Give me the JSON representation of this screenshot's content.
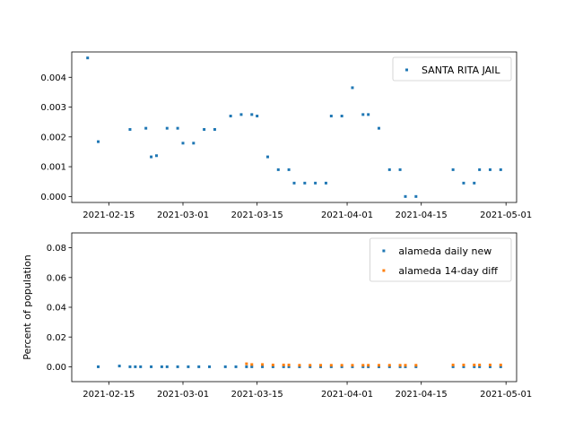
{
  "chart_data": [
    {
      "type": "scatter",
      "title": "",
      "xlabel": "",
      "ylabel": "",
      "xlim": [
        "2021-02-08",
        "2021-05-03"
      ],
      "ylim": [
        -0.0002,
        0.00485
      ],
      "xticks": [
        "2021-02-15",
        "2021-03-01",
        "2021-03-15",
        "2021-04-01",
        "2021-04-15",
        "2021-05-01"
      ],
      "yticks": [
        "0.000",
        "0.001",
        "0.002",
        "0.003",
        "0.004"
      ],
      "legend_position": "top-right",
      "series": [
        {
          "name": "SANTA RITA JAIL",
          "color": "#1f77b4",
          "points": [
            [
              "2021-02-11",
              0.00465
            ],
            [
              "2021-02-13",
              0.00184
            ],
            [
              "2021-02-19",
              0.00225
            ],
            [
              "2021-02-22",
              0.00229
            ],
            [
              "2021-02-23",
              0.00133
            ],
            [
              "2021-02-24",
              0.00137
            ],
            [
              "2021-02-26",
              0.00229
            ],
            [
              "2021-02-28",
              0.00229
            ],
            [
              "2021-03-01",
              0.00179
            ],
            [
              "2021-03-03",
              0.00179
            ],
            [
              "2021-03-05",
              0.00225
            ],
            [
              "2021-03-07",
              0.00225
            ],
            [
              "2021-03-10",
              0.0027
            ],
            [
              "2021-03-12",
              0.00275
            ],
            [
              "2021-03-14",
              0.00275
            ],
            [
              "2021-03-15",
              0.0027
            ],
            [
              "2021-03-17",
              0.00133
            ],
            [
              "2021-03-19",
              0.0009
            ],
            [
              "2021-03-21",
              0.0009
            ],
            [
              "2021-03-22",
              0.00045
            ],
            [
              "2021-03-24",
              0.00045
            ],
            [
              "2021-03-26",
              0.00045
            ],
            [
              "2021-03-28",
              0.00045
            ],
            [
              "2021-03-29",
              0.0027
            ],
            [
              "2021-03-31",
              0.0027
            ],
            [
              "2021-04-02",
              0.00365
            ],
            [
              "2021-04-04",
              0.00275
            ],
            [
              "2021-04-05",
              0.00275
            ],
            [
              "2021-04-07",
              0.00229
            ],
            [
              "2021-04-09",
              0.0009
            ],
            [
              "2021-04-11",
              0.0009
            ],
            [
              "2021-04-12",
              0.0
            ],
            [
              "2021-04-14",
              0.0
            ],
            [
              "2021-04-21",
              0.0009
            ],
            [
              "2021-04-23",
              0.00045
            ],
            [
              "2021-04-25",
              0.00045
            ],
            [
              "2021-04-26",
              0.0009
            ],
            [
              "2021-04-28",
              0.0009
            ],
            [
              "2021-04-30",
              0.0009
            ]
          ]
        }
      ]
    },
    {
      "type": "scatter",
      "title": "",
      "xlabel": "",
      "ylabel": "Percent of population",
      "xlim": [
        "2021-02-08",
        "2021-05-03"
      ],
      "ylim": [
        -0.01,
        0.09
      ],
      "xticks": [
        "2021-02-15",
        "2021-03-01",
        "2021-03-15",
        "2021-04-01",
        "2021-04-15",
        "2021-05-01"
      ],
      "yticks": [
        "0.00",
        "0.02",
        "0.04",
        "0.06",
        "0.08"
      ],
      "legend_position": "top-right",
      "series": [
        {
          "name": "alameda daily new",
          "color": "#1f77b4",
          "points": [
            [
              "2021-02-13",
              0.0
            ],
            [
              "2021-02-17",
              0.0005
            ],
            [
              "2021-02-19",
              0.0
            ],
            [
              "2021-02-20",
              0.0
            ],
            [
              "2021-02-21",
              0.0
            ],
            [
              "2021-02-23",
              0.0
            ],
            [
              "2021-02-25",
              0.0
            ],
            [
              "2021-02-26",
              0.0
            ],
            [
              "2021-02-28",
              0.0
            ],
            [
              "2021-03-02",
              0.0
            ],
            [
              "2021-03-04",
              0.0
            ],
            [
              "2021-03-06",
              0.0
            ],
            [
              "2021-03-09",
              0.0
            ],
            [
              "2021-03-11",
              0.0
            ],
            [
              "2021-03-13",
              0.0
            ],
            [
              "2021-03-14",
              0.0
            ],
            [
              "2021-03-16",
              0.0
            ],
            [
              "2021-03-18",
              0.0
            ],
            [
              "2021-03-20",
              0.0
            ],
            [
              "2021-03-21",
              0.0
            ],
            [
              "2021-03-23",
              0.0
            ],
            [
              "2021-03-25",
              0.0
            ],
            [
              "2021-03-27",
              0.0
            ],
            [
              "2021-03-29",
              0.0
            ],
            [
              "2021-03-31",
              0.0
            ],
            [
              "2021-04-02",
              0.0
            ],
            [
              "2021-04-04",
              0.0
            ],
            [
              "2021-04-05",
              0.0
            ],
            [
              "2021-04-07",
              0.0
            ],
            [
              "2021-04-09",
              0.0
            ],
            [
              "2021-04-11",
              0.0
            ],
            [
              "2021-04-12",
              0.0
            ],
            [
              "2021-04-14",
              0.0
            ],
            [
              "2021-04-21",
              0.0
            ],
            [
              "2021-04-23",
              0.0
            ],
            [
              "2021-04-25",
              0.0
            ],
            [
              "2021-04-26",
              0.0
            ],
            [
              "2021-04-28",
              0.0
            ],
            [
              "2021-04-30",
              0.0
            ]
          ]
        },
        {
          "name": "alameda 14-day diff",
          "color": "#ff7f0e",
          "points": [
            [
              "2021-03-13",
              0.002
            ],
            [
              "2021-03-14",
              0.0015
            ],
            [
              "2021-03-16",
              0.0015
            ],
            [
              "2021-03-18",
              0.0012
            ],
            [
              "2021-03-20",
              0.0012
            ],
            [
              "2021-03-21",
              0.0012
            ],
            [
              "2021-03-23",
              0.001
            ],
            [
              "2021-03-25",
              0.001
            ],
            [
              "2021-03-27",
              0.001
            ],
            [
              "2021-03-29",
              0.001
            ],
            [
              "2021-03-31",
              0.001
            ],
            [
              "2021-04-02",
              0.001
            ],
            [
              "2021-04-04",
              0.001
            ],
            [
              "2021-04-05",
              0.001
            ],
            [
              "2021-04-07",
              0.001
            ],
            [
              "2021-04-09",
              0.001
            ],
            [
              "2021-04-11",
              0.001
            ],
            [
              "2021-04-12",
              0.001
            ],
            [
              "2021-04-14",
              0.001
            ],
            [
              "2021-04-21",
              0.0012
            ],
            [
              "2021-04-23",
              0.0012
            ],
            [
              "2021-04-25",
              0.0012
            ],
            [
              "2021-04-26",
              0.0012
            ],
            [
              "2021-04-28",
              0.0012
            ],
            [
              "2021-04-30",
              0.0012
            ]
          ]
        }
      ]
    }
  ]
}
